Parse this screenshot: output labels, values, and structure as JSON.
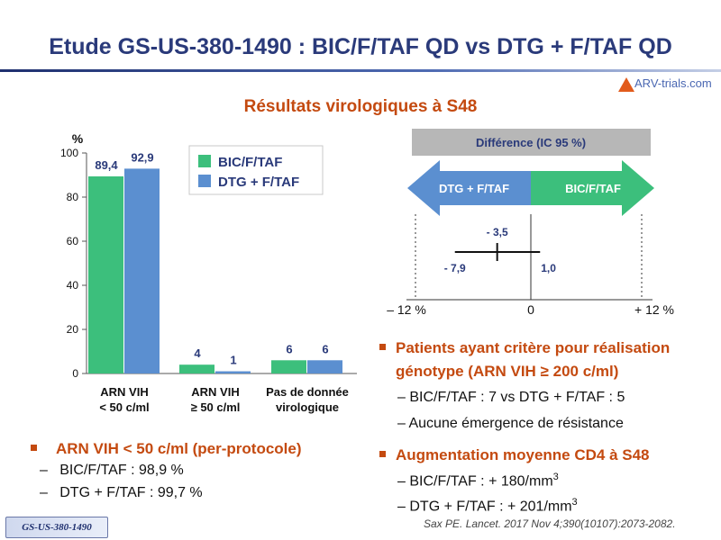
{
  "title": "Etude GS-US-380-1490 : BIC/F/TAF QD vs DTG + F/TAF QD",
  "logo": "ARV-trials.com",
  "subtitle": "Résultats virologiques à S48",
  "chart_data": [
    {
      "type": "bar",
      "ylabel": "%",
      "ylim": [
        0,
        100
      ],
      "yticks": [
        0,
        20,
        40,
        60,
        80,
        100
      ],
      "categories": [
        [
          "ARN VIH",
          "< 50 c/ml"
        ],
        [
          "ARN VIH",
          "≥ 50 c/ml"
        ],
        [
          "Pas de donnée",
          "virologique"
        ]
      ],
      "series": [
        {
          "name": "BIC/F/TAF",
          "values": [
            89.4,
            4,
            6
          ],
          "labels": [
            "89,4",
            "4",
            "6"
          ],
          "color": "#3cbf7c"
        },
        {
          "name": "DTG + F/TAF",
          "values": [
            92.9,
            1,
            6
          ],
          "labels": [
            "92,9",
            "1",
            "6"
          ],
          "color": "#5b8fd0"
        }
      ],
      "legend": "top-right"
    },
    {
      "type": "forest",
      "header": "Différence (IC 95 %)",
      "arrow_left": "DTG + F/TAF",
      "arrow_right": "BIC/F/TAF",
      "xlim": [
        -12,
        12
      ],
      "point": -3.5,
      "ci": [
        -7.9,
        1.0
      ],
      "point_label": "- 3,5",
      "ci_low_label": "- 7,9",
      "ci_high_label": "1,0",
      "tick_labels": [
        "– 12 %",
        "0",
        "+ 12 %"
      ]
    }
  ],
  "right_bullets": [
    {
      "title": "Patients ayant critère pour réalisation génotype (ARN VIH ≥ 200 c/ml)",
      "subs": [
        "BIC/F/TAF : 7 vs DTG + F/TAF : 5",
        "Aucune émergence de résistance"
      ]
    },
    {
      "title": "Augmentation moyenne CD4 à S48",
      "subs": [
        "BIC/F/TAF : + 180/mm",
        "DTG + F/TAF : + 201/mm"
      ]
    }
  ],
  "sup": "3",
  "left_bullet": {
    "title": "ARN VIH < 50 c/ml (per-protocole)",
    "subs": [
      "BIC/F/TAF : 98,9 %",
      "DTG + F/TAF : 99,7 %"
    ]
  },
  "dash": "–",
  "reference": "Sax PE. Lancet. 2017 Nov 4;390(10107):2073-2082.",
  "footer_tag": "GS-US-380-1490",
  "colors": {
    "title": "#2a3a7a",
    "accent": "#c44a10",
    "bic": "#3cbf7c",
    "dtg": "#5b8fd0",
    "arrow_left": "#5b8fd0",
    "arrow_right": "#3cbf7c"
  }
}
